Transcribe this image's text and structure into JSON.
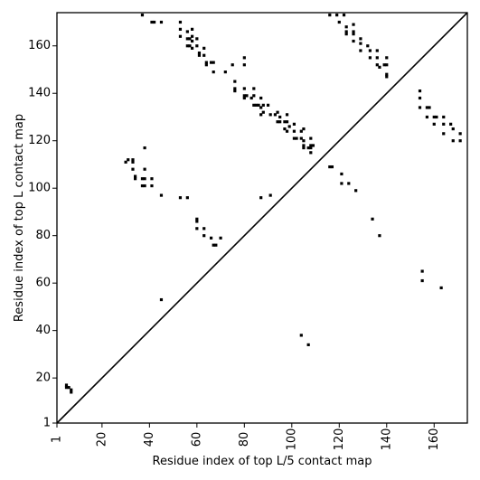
{
  "chart_data": {
    "type": "scatter",
    "xlabel": "Residue index of top L/5 contact map",
    "ylabel": "Residue index of top L contact map",
    "xlim": [
      1,
      174
    ],
    "ylim": [
      1,
      174
    ],
    "x_ticks": [
      "1",
      "20",
      "40",
      "60",
      "80",
      "100",
      "120",
      "140",
      "160"
    ],
    "y_ticks": [
      "1",
      "20",
      "40",
      "60",
      "80",
      "100",
      "120",
      "140",
      "160"
    ],
    "diagonal_line": true,
    "marker": "square",
    "point_color": "#000000",
    "points": [
      [
        5,
        17
      ],
      [
        5,
        16
      ],
      [
        6,
        16
      ],
      [
        7,
        15
      ],
      [
        7,
        14
      ],
      [
        30,
        111
      ],
      [
        31,
        112
      ],
      [
        33,
        112
      ],
      [
        33,
        111
      ],
      [
        33,
        108
      ],
      [
        34,
        105
      ],
      [
        34,
        104
      ],
      [
        37,
        104
      ],
      [
        37,
        101
      ],
      [
        38,
        108
      ],
      [
        38,
        104
      ],
      [
        38,
        117
      ],
      [
        38,
        101
      ],
      [
        41,
        104
      ],
      [
        41,
        101
      ],
      [
        45,
        97
      ],
      [
        45,
        53
      ],
      [
        37,
        173
      ],
      [
        41,
        170
      ],
      [
        42,
        170
      ],
      [
        45,
        170
      ],
      [
        53,
        170
      ],
      [
        53,
        167
      ],
      [
        53,
        164
      ],
      [
        53,
        96
      ],
      [
        56,
        96
      ],
      [
        56,
        166
      ],
      [
        56,
        163
      ],
      [
        56,
        160
      ],
      [
        57,
        160
      ],
      [
        57,
        163
      ],
      [
        58,
        164
      ],
      [
        58,
        167
      ],
      [
        58,
        162
      ],
      [
        58,
        159
      ],
      [
        60,
        160
      ],
      [
        60,
        163
      ],
      [
        61,
        157
      ],
      [
        61,
        156
      ],
      [
        63,
        156
      ],
      [
        63,
        159
      ],
      [
        64,
        153
      ],
      [
        64,
        152
      ],
      [
        66,
        153
      ],
      [
        67,
        153
      ],
      [
        67,
        149
      ],
      [
        60,
        87
      ],
      [
        60,
        86
      ],
      [
        60,
        83
      ],
      [
        63,
        83
      ],
      [
        63,
        80
      ],
      [
        66,
        79
      ],
      [
        67,
        76
      ],
      [
        68,
        76
      ],
      [
        70,
        79
      ],
      [
        72,
        149
      ],
      [
        75,
        152
      ],
      [
        76,
        145
      ],
      [
        76,
        142
      ],
      [
        76,
        141
      ],
      [
        80,
        155
      ],
      [
        80,
        152
      ],
      [
        80,
        142
      ],
      [
        80,
        139
      ],
      [
        80,
        138
      ],
      [
        81,
        139
      ],
      [
        83,
        138
      ],
      [
        84,
        142
      ],
      [
        84,
        139
      ],
      [
        84,
        135
      ],
      [
        85,
        135
      ],
      [
        86,
        135
      ],
      [
        87,
        138
      ],
      [
        87,
        134
      ],
      [
        87,
        131
      ],
      [
        88,
        132
      ],
      [
        88,
        135
      ],
      [
        90,
        135
      ],
      [
        91,
        131
      ],
      [
        93,
        131
      ],
      [
        94,
        132
      ],
      [
        94,
        128
      ],
      [
        95,
        130
      ],
      [
        95,
        128
      ],
      [
        97,
        128
      ],
      [
        97,
        125
      ],
      [
        98,
        131
      ],
      [
        98,
        128
      ],
      [
        98,
        124
      ],
      [
        99,
        126
      ],
      [
        101,
        127
      ],
      [
        101,
        124
      ],
      [
        101,
        121
      ],
      [
        102,
        121
      ],
      [
        104,
        121
      ],
      [
        104,
        124
      ],
      [
        105,
        125
      ],
      [
        105,
        120
      ],
      [
        105,
        118
      ],
      [
        105,
        117
      ],
      [
        107,
        117
      ],
      [
        108,
        117
      ],
      [
        108,
        121
      ],
      [
        108,
        118
      ],
      [
        108,
        115
      ],
      [
        109,
        118
      ],
      [
        87,
        96
      ],
      [
        91,
        97
      ],
      [
        104,
        38
      ],
      [
        107,
        34
      ],
      [
        116,
        109
      ],
      [
        117,
        109
      ],
      [
        116,
        173
      ],
      [
        119,
        173
      ],
      [
        120,
        170
      ],
      [
        121,
        106
      ],
      [
        121,
        102
      ],
      [
        122,
        173
      ],
      [
        123,
        166
      ],
      [
        123,
        168
      ],
      [
        123,
        165
      ],
      [
        124,
        102
      ],
      [
        126,
        169
      ],
      [
        126,
        166
      ],
      [
        126,
        165
      ],
      [
        126,
        162
      ],
      [
        127,
        99
      ],
      [
        129,
        163
      ],
      [
        129,
        161
      ],
      [
        129,
        158
      ],
      [
        132,
        160
      ],
      [
        133,
        158
      ],
      [
        133,
        155
      ],
      [
        134,
        87
      ],
      [
        136,
        158
      ],
      [
        136,
        155
      ],
      [
        136,
        152
      ],
      [
        137,
        80
      ],
      [
        137,
        151
      ],
      [
        139,
        152
      ],
      [
        140,
        152
      ],
      [
        140,
        155
      ],
      [
        140,
        148
      ],
      [
        140,
        147
      ],
      [
        154,
        141
      ],
      [
        154,
        138
      ],
      [
        154,
        134
      ],
      [
        155,
        65
      ],
      [
        155,
        61
      ],
      [
        157,
        130
      ],
      [
        157,
        134
      ],
      [
        158,
        134
      ],
      [
        160,
        130
      ],
      [
        160,
        127
      ],
      [
        161,
        130
      ],
      [
        163,
        58
      ],
      [
        164,
        130
      ],
      [
        164,
        127
      ],
      [
        164,
        123
      ],
      [
        167,
        127
      ],
      [
        168,
        125
      ],
      [
        168,
        120
      ],
      [
        171,
        123
      ],
      [
        171,
        120
      ]
    ]
  }
}
